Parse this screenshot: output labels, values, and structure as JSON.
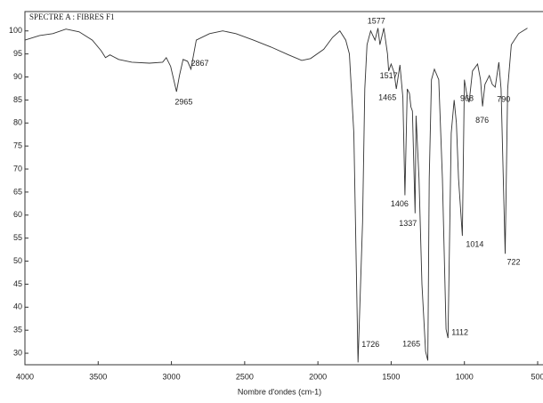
{
  "chart_data": {
    "type": "line",
    "title": "SPECTRE A : FIBRES F1",
    "x_label": "Nombre d'ondes (cm-1)",
    "x": [
      4000,
      3900,
      3810,
      3720,
      3630,
      3540,
      3480,
      3450,
      3420,
      3360,
      3270,
      3150,
      3060,
      3035,
      3005,
      2965,
      2945,
      2920,
      2890,
      2867,
      2830,
      2740,
      2650,
      2560,
      2440,
      2320,
      2200,
      2110,
      2050,
      1960,
      1900,
      1850,
      1810,
      1785,
      1755,
      1726,
      1695,
      1680,
      1665,
      1640,
      1610,
      1590,
      1577,
      1550,
      1525,
      1517,
      1500,
      1480,
      1465,
      1440,
      1420,
      1406,
      1390,
      1375,
      1365,
      1355,
      1337,
      1330,
      1310,
      1290,
      1265,
      1250,
      1240,
      1225,
      1205,
      1175,
      1150,
      1125,
      1112,
      1090,
      1070,
      1055,
      1040,
      1014,
      1000,
      980,
      968,
      945,
      910,
      890,
      876,
      860,
      830,
      810,
      790,
      765,
      750,
      722,
      705,
      680,
      630,
      570
    ],
    "values": [
      98,
      99,
      99.4,
      100.4,
      99.8,
      98,
      95.7,
      94.2,
      94.8,
      93.8,
      93.2,
      93,
      93.2,
      94.2,
      92.3,
      86.8,
      90.3,
      93.8,
      93.4,
      91.7,
      98,
      99.4,
      100,
      99.4,
      98,
      96.5,
      94.8,
      93.6,
      94,
      96,
      98.6,
      100,
      98,
      95,
      77.8,
      28,
      58.4,
      87.4,
      97,
      100,
      98,
      100.6,
      97,
      100.6,
      95,
      91.3,
      92.8,
      91,
      87.4,
      92.6,
      85.5,
      64.3,
      87.4,
      86.4,
      83.5,
      82.6,
      60.4,
      81.6,
      68,
      45,
      30.4,
      28.4,
      68,
      89.4,
      91.7,
      89.4,
      68,
      35.2,
      33.3,
      77.8,
      85,
      80,
      68,
      55.5,
      89.4,
      85.5,
      84.5,
      91.3,
      92.8,
      89.4,
      83.6,
      88.4,
      90.3,
      88.4,
      87.8,
      93.2,
      87.4,
      51.6,
      87.4,
      97,
      99.4,
      100.6
    ],
    "color": "#333333",
    "xlim": [
      4000,
      500
    ],
    "ylim": [
      27.5,
      104.2
    ],
    "xticks": [
      4000,
      3500,
      3000,
      2500,
      2000,
      1500,
      1000,
      500
    ],
    "yticks": [
      30,
      35,
      40,
      45,
      50,
      55,
      60,
      65,
      70,
      75,
      80,
      85,
      90,
      95,
      100
    ],
    "annotations": [
      {
        "label": "2965",
        "x": 2965,
        "y": 86.8
      },
      {
        "label": "2867",
        "x": 2867,
        "y": 91.7
      },
      {
        "label": "1577",
        "x": 1577,
        "y": 97
      },
      {
        "label": "1517",
        "x": 1517,
        "y": 91.3
      },
      {
        "label": "1465",
        "x": 1465,
        "y": 87.4
      },
      {
        "label": "1406",
        "x": 1406,
        "y": 64.3
      },
      {
        "label": "1337",
        "x": 1337,
        "y": 60.4
      },
      {
        "label": "1726",
        "x": 1726,
        "y": 28
      },
      {
        "label": "1265",
        "x": 1265,
        "y": 30.4
      },
      {
        "label": "1112",
        "x": 1112,
        "y": 33.3
      },
      {
        "label": "1014",
        "x": 1014,
        "y": 55.5
      },
      {
        "label": "968",
        "x": 968,
        "y": 84.5
      },
      {
        "label": "876",
        "x": 876,
        "y": 83.6
      },
      {
        "label": "790",
        "x": 790,
        "y": 87.8
      },
      {
        "label": "722",
        "x": 722,
        "y": 51.6
      }
    ]
  }
}
